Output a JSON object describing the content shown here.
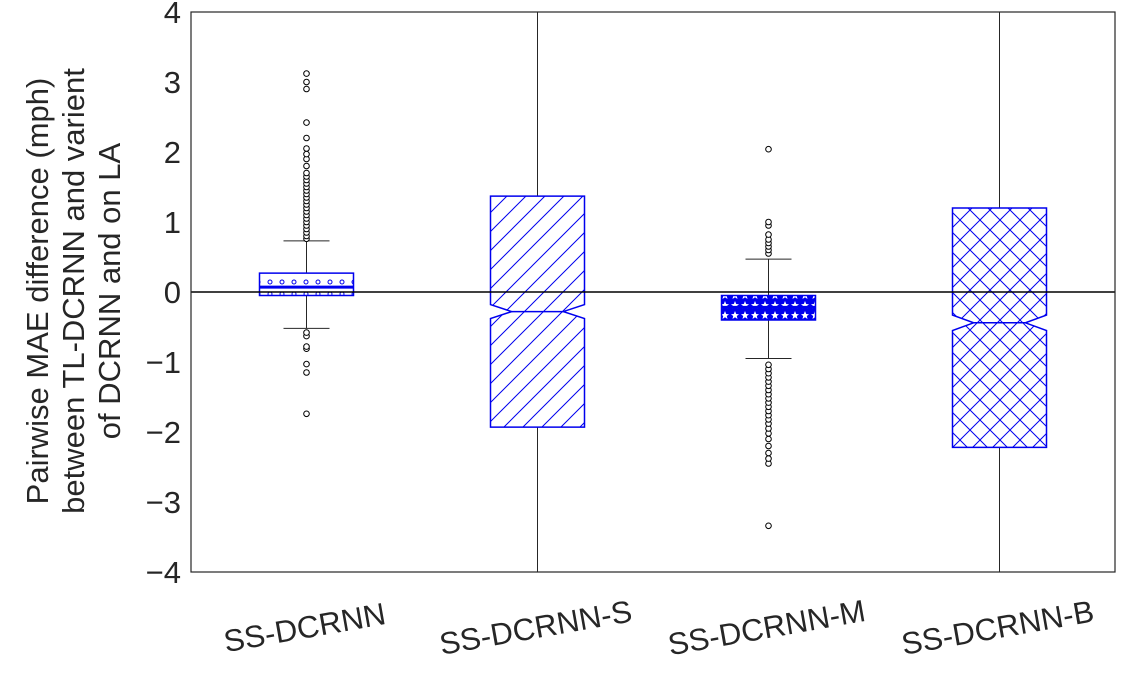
{
  "chart_data": {
    "type": "box",
    "xlabel": "",
    "ylabel": [
      "Pairwise MAE difference (mph)",
      "between TL-DCRNN and varient",
      "of DCRNN and on LA"
    ],
    "ylim": [
      -4,
      4
    ],
    "yticks": [
      -4,
      -3,
      -2,
      -1,
      0,
      1,
      2,
      3,
      4
    ],
    "ytick_labels": [
      "−4",
      "−3",
      "−2",
      "−1",
      "0",
      "1",
      "2",
      "3",
      "4"
    ],
    "categories": [
      "SS-DCRNN",
      "SS-DCRNN-S",
      "SS-DCRNN-M",
      "SS-DCRNN-B"
    ],
    "grid": false,
    "reference_line_y": 0,
    "colors": {
      "box": "#0000ee",
      "text": "#262626",
      "axis": "#262626",
      "outlier": "#000000"
    },
    "boxes": [
      {
        "name": "SS-DCRNN",
        "hatch": "circles",
        "notched": false,
        "q1": -0.05,
        "median": 0.07,
        "q3": 0.27,
        "whisker_low": -0.52,
        "whisker_high": 0.73,
        "outliers": [
          -1.74,
          -1.15,
          -1.03,
          -0.81,
          -0.78,
          -0.63,
          -0.58,
          0.76,
          0.8,
          0.85,
          0.9,
          0.95,
          1.0,
          1.05,
          1.1,
          1.15,
          1.2,
          1.25,
          1.3,
          1.35,
          1.4,
          1.45,
          1.5,
          1.55,
          1.6,
          1.65,
          1.7,
          1.8,
          1.9,
          1.97,
          2.05,
          2.2,
          2.42,
          2.9,
          3.0,
          3.12
        ]
      },
      {
        "name": "SS-DCRNN-S",
        "hatch": "diagonal",
        "notched": true,
        "q1": -1.93,
        "median": -0.28,
        "q3": 1.37,
        "notch_low": -0.38,
        "notch_high": -0.18,
        "whisker_low": -4.0,
        "whisker_high": 4.0,
        "outliers": []
      },
      {
        "name": "SS-DCRNN-M",
        "hatch": "stars",
        "notched": false,
        "q1": -0.4,
        "median": -0.22,
        "q3": -0.05,
        "whisker_low": -0.95,
        "whisker_high": 0.47,
        "outliers": [
          -3.34,
          -2.45,
          -2.38,
          -2.3,
          -2.2,
          -2.1,
          -2.02,
          -1.95,
          -1.88,
          -1.82,
          -1.76,
          -1.7,
          -1.64,
          -1.58,
          -1.52,
          -1.46,
          -1.4,
          -1.34,
          -1.28,
          -1.22,
          -1.16,
          -1.1,
          -1.04,
          0.55,
          0.6,
          0.65,
          0.7,
          0.75,
          0.82,
          0.95,
          1.0,
          2.04
        ]
      },
      {
        "name": "SS-DCRNN-B",
        "hatch": "crosshatch",
        "notched": true,
        "q1": -2.22,
        "median": -0.44,
        "q3": 1.2,
        "notch_low": -0.55,
        "notch_high": -0.33,
        "whisker_low": -4.0,
        "whisker_high": 4.0,
        "outliers": []
      }
    ]
  }
}
